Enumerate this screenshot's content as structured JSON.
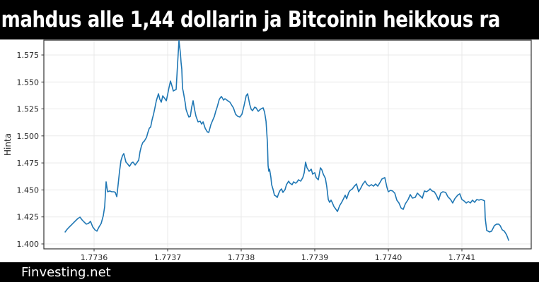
{
  "header": {
    "title": "mahdus alle 1,44 dollarin ja Bitcoinin heikkous ra",
    "background": "#000000",
    "text_color": "#ffffff"
  },
  "footer": {
    "site": "Finvesting.net",
    "background": "#000000",
    "text_color": "#ffffff"
  },
  "chart_data": {
    "type": "line",
    "title": "",
    "xlabel": "",
    "ylabel": "Hinta",
    "legend": false,
    "grid": true,
    "x_tick_labels": [
      "1.7736",
      "1.7737",
      "1.7738",
      "1.7739",
      "1.7740",
      "1.7741"
    ],
    "x_tick_values": [
      1.7736,
      1.7737,
      1.7738,
      1.7739,
      1.774,
      1.7741
    ],
    "y_tick_labels": [
      "1.400",
      "1.425",
      "1.450",
      "1.475",
      "1.500",
      "1.525",
      "1.550",
      "1.575"
    ],
    "y_tick_values": [
      1.4,
      1.425,
      1.45,
      1.475,
      1.5,
      1.525,
      1.55,
      1.575
    ],
    "xlim": [
      1.7735317,
      1.7741942
    ],
    "ylim": [
      1.3954,
      1.5887
    ],
    "line_color": "#1f77b4",
    "grid_color": "#e9e9e9",
    "spine_color": "#333333",
    "tick_label_color": "#262626",
    "series": [
      {
        "name": "Hinta",
        "points": [
          [
            1.7735606,
            1.4111
          ],
          [
            1.7735635,
            1.4137
          ],
          [
            1.7735663,
            1.4157
          ],
          [
            1.7735692,
            1.4176
          ],
          [
            1.7735721,
            1.4196
          ],
          [
            1.773575,
            1.4216
          ],
          [
            1.7735779,
            1.4235
          ],
          [
            1.7735808,
            1.4248
          ],
          [
            1.7735837,
            1.4222
          ],
          [
            1.7735865,
            1.4202
          ],
          [
            1.7735894,
            1.4183
          ],
          [
            1.7735923,
            1.4189
          ],
          [
            1.7735952,
            1.4209
          ],
          [
            1.7735981,
            1.4157
          ],
          [
            1.773601,
            1.4131
          ],
          [
            1.7736038,
            1.4118
          ],
          [
            1.7736067,
            1.4157
          ],
          [
            1.7736096,
            1.4189
          ],
          [
            1.7736125,
            1.4261
          ],
          [
            1.7736144,
            1.4346
          ],
          [
            1.7736163,
            1.4575
          ],
          [
            1.7736183,
            1.4483
          ],
          [
            1.7736212,
            1.449
          ],
          [
            1.773624,
            1.4483
          ],
          [
            1.7736269,
            1.4483
          ],
          [
            1.7736288,
            1.4477
          ],
          [
            1.7736308,
            1.4437
          ],
          [
            1.7736327,
            1.4549
          ],
          [
            1.7736346,
            1.4673
          ],
          [
            1.7736365,
            1.4771
          ],
          [
            1.7736385,
            1.4816
          ],
          [
            1.7736404,
            1.4836
          ],
          [
            1.7736433,
            1.4757
          ],
          [
            1.7736452,
            1.4744
          ],
          [
            1.7736481,
            1.4718
          ],
          [
            1.773651,
            1.4751
          ],
          [
            1.7736529,
            1.4757
          ],
          [
            1.7736558,
            1.4731
          ],
          [
            1.7736587,
            1.4757
          ],
          [
            1.7736606,
            1.4777
          ],
          [
            1.7736625,
            1.4855
          ],
          [
            1.7736644,
            1.4908
          ],
          [
            1.7736663,
            1.494
          ],
          [
            1.7736683,
            1.4953
          ],
          [
            1.7736712,
            1.4986
          ],
          [
            1.7736731,
            1.5032
          ],
          [
            1.773675,
            1.5071
          ],
          [
            1.7736769,
            1.5084
          ],
          [
            1.7736788,
            1.5149
          ],
          [
            1.7736808,
            1.5202
          ],
          [
            1.7736827,
            1.526
          ],
          [
            1.7736846,
            1.5326
          ],
          [
            1.7736875,
            1.5391
          ],
          [
            1.7736894,
            1.5339
          ],
          [
            1.7736913,
            1.5313
          ],
          [
            1.7736933,
            1.5371
          ],
          [
            1.7736962,
            1.5345
          ],
          [
            1.7736981,
            1.5326
          ],
          [
            1.7737,
            1.5384
          ],
          [
            1.7737019,
            1.545
          ],
          [
            1.7737038,
            1.5508
          ],
          [
            1.7737058,
            1.5463
          ],
          [
            1.7737077,
            1.5417
          ],
          [
            1.7737096,
            1.5424
          ],
          [
            1.7737115,
            1.543
          ],
          [
            1.7737135,
            1.5672
          ],
          [
            1.7737154,
            1.5885
          ],
          [
            1.7737173,
            1.5769
          ],
          [
            1.7737183,
            1.5672
          ],
          [
            1.7737192,
            1.5619
          ],
          [
            1.7737202,
            1.5443
          ],
          [
            1.7737212,
            1.541
          ],
          [
            1.773724,
            1.53
          ],
          [
            1.773725,
            1.5247
          ],
          [
            1.7737269,
            1.5208
          ],
          [
            1.7737288,
            1.5175
          ],
          [
            1.7737308,
            1.5182
          ],
          [
            1.7737327,
            1.5267
          ],
          [
            1.7737346,
            1.5326
          ],
          [
            1.7737365,
            1.5247
          ],
          [
            1.7737385,
            1.5182
          ],
          [
            1.7737413,
            1.513
          ],
          [
            1.7737442,
            1.5136
          ],
          [
            1.7737462,
            1.511
          ],
          [
            1.7737481,
            1.513
          ],
          [
            1.773751,
            1.5071
          ],
          [
            1.7737538,
            1.5038
          ],
          [
            1.7737558,
            1.5032
          ],
          [
            1.7737587,
            1.5104
          ],
          [
            1.7737606,
            1.5136
          ],
          [
            1.7737635,
            1.5182
          ],
          [
            1.7737654,
            1.5228
          ],
          [
            1.7737673,
            1.5267
          ],
          [
            1.7737702,
            1.5339
          ],
          [
            1.7737721,
            1.5358
          ],
          [
            1.7737731,
            1.5365
          ],
          [
            1.773776,
            1.5332
          ],
          [
            1.7737779,
            1.5345
          ],
          [
            1.7737817,
            1.5326
          ],
          [
            1.7737846,
            1.5313
          ],
          [
            1.7737875,
            1.528
          ],
          [
            1.7737894,
            1.526
          ],
          [
            1.7737923,
            1.5202
          ],
          [
            1.7737952,
            1.5182
          ],
          [
            1.7737981,
            1.5175
          ],
          [
            1.773801,
            1.5202
          ],
          [
            1.7738038,
            1.528
          ],
          [
            1.7738067,
            1.5371
          ],
          [
            1.7738087,
            1.5391
          ],
          [
            1.7738115,
            1.5293
          ],
          [
            1.7738135,
            1.5247
          ],
          [
            1.7738154,
            1.5234
          ],
          [
            1.7738183,
            1.5267
          ],
          [
            1.7738202,
            1.526
          ],
          [
            1.7738231,
            1.5228
          ],
          [
            1.773826,
            1.5247
          ],
          [
            1.7738279,
            1.5254
          ],
          [
            1.7738298,
            1.526
          ],
          [
            1.7738317,
            1.5221
          ],
          [
            1.7738337,
            1.5136
          ],
          [
            1.7738356,
            1.4934
          ],
          [
            1.7738365,
            1.4725
          ],
          [
            1.7738375,
            1.4673
          ],
          [
            1.7738385,
            1.4692
          ],
          [
            1.7738404,
            1.4614
          ],
          [
            1.7738413,
            1.4549
          ],
          [
            1.7738433,
            1.4503
          ],
          [
            1.7738452,
            1.4451
          ],
          [
            1.7738471,
            1.4444
          ],
          [
            1.773849,
            1.4431
          ],
          [
            1.773851,
            1.447
          ],
          [
            1.7738529,
            1.4496
          ],
          [
            1.7738548,
            1.4509
          ],
          [
            1.7738567,
            1.4477
          ],
          [
            1.7738596,
            1.4503
          ],
          [
            1.7738615,
            1.4549
          ],
          [
            1.7738644,
            1.4581
          ],
          [
            1.7738663,
            1.4562
          ],
          [
            1.7738692,
            1.4549
          ],
          [
            1.7738712,
            1.4575
          ],
          [
            1.773874,
            1.4562
          ],
          [
            1.773876,
            1.4575
          ],
          [
            1.7738779,
            1.4594
          ],
          [
            1.7738808,
            1.4581
          ],
          [
            1.7738837,
            1.4614
          ],
          [
            1.7738856,
            1.466
          ],
          [
            1.7738875,
            1.4757
          ],
          [
            1.7738894,
            1.4705
          ],
          [
            1.7738923,
            1.4673
          ],
          [
            1.7738952,
            1.4692
          ],
          [
            1.7738971,
            1.4646
          ],
          [
            1.7739,
            1.466
          ],
          [
            1.7739019,
            1.4614
          ],
          [
            1.7739048,
            1.4594
          ],
          [
            1.7739077,
            1.4705
          ],
          [
            1.7739096,
            1.4686
          ],
          [
            1.7739115,
            1.4646
          ],
          [
            1.7739144,
            1.4607
          ],
          [
            1.7739163,
            1.4529
          ],
          [
            1.7739183,
            1.4411
          ],
          [
            1.7739202,
            1.4385
          ],
          [
            1.7739221,
            1.4405
          ],
          [
            1.773924,
            1.4379
          ],
          [
            1.773926,
            1.4346
          ],
          [
            1.7739288,
            1.432
          ],
          [
            1.7739308,
            1.43
          ],
          [
            1.7739337,
            1.4353
          ],
          [
            1.7739365,
            1.4385
          ],
          [
            1.7739385,
            1.4411
          ],
          [
            1.7739413,
            1.4451
          ],
          [
            1.7739433,
            1.4418
          ],
          [
            1.7739462,
            1.4477
          ],
          [
            1.7739481,
            1.4496
          ],
          [
            1.773951,
            1.4509
          ],
          [
            1.7739538,
            1.4535
          ],
          [
            1.7739567,
            1.4555
          ],
          [
            1.7739596,
            1.4483
          ],
          [
            1.7739625,
            1.4516
          ],
          [
            1.7739654,
            1.4555
          ],
          [
            1.7739683,
            1.4581
          ],
          [
            1.7739712,
            1.4549
          ],
          [
            1.773974,
            1.4535
          ],
          [
            1.7739769,
            1.4549
          ],
          [
            1.7739798,
            1.4535
          ],
          [
            1.7739827,
            1.4555
          ],
          [
            1.7739856,
            1.4535
          ],
          [
            1.7739885,
            1.4568
          ],
          [
            1.7739913,
            1.4601
          ],
          [
            1.7739952,
            1.4614
          ],
          [
            1.7739981,
            1.4522
          ],
          [
            1.774,
            1.4483
          ],
          [
            1.7740029,
            1.4496
          ],
          [
            1.7740058,
            1.449
          ],
          [
            1.7740087,
            1.447
          ],
          [
            1.7740115,
            1.4405
          ],
          [
            1.7740144,
            1.4379
          ],
          [
            1.7740173,
            1.4333
          ],
          [
            1.7740202,
            1.432
          ],
          [
            1.7740231,
            1.4372
          ],
          [
            1.7740269,
            1.4411
          ],
          [
            1.7740298,
            1.4457
          ],
          [
            1.7740327,
            1.4424
          ],
          [
            1.7740365,
            1.4431
          ],
          [
            1.7740394,
            1.447
          ],
          [
            1.7740423,
            1.4451
          ],
          [
            1.7740462,
            1.4424
          ],
          [
            1.774049,
            1.449
          ],
          [
            1.7740519,
            1.4483
          ],
          [
            1.7740548,
            1.4496
          ],
          [
            1.7740567,
            1.4509
          ],
          [
            1.7740596,
            1.449
          ],
          [
            1.7740625,
            1.4483
          ],
          [
            1.7740654,
            1.4451
          ],
          [
            1.7740683,
            1.4405
          ],
          [
            1.7740712,
            1.447
          ],
          [
            1.774074,
            1.4483
          ],
          [
            1.7740779,
            1.4477
          ],
          [
            1.7740808,
            1.4438
          ],
          [
            1.7740846,
            1.4411
          ],
          [
            1.7740875,
            1.4379
          ],
          [
            1.7740904,
            1.4418
          ],
          [
            1.7740942,
            1.4451
          ],
          [
            1.7740971,
            1.4464
          ],
          [
            1.7741,
            1.4411
          ],
          [
            1.7741029,
            1.4398
          ],
          [
            1.7741058,
            1.4379
          ],
          [
            1.7741087,
            1.4392
          ],
          [
            1.7741115,
            1.4379
          ],
          [
            1.7741144,
            1.4405
          ],
          [
            1.7741173,
            1.4385
          ],
          [
            1.7741202,
            1.4411
          ],
          [
            1.7741231,
            1.4405
          ],
          [
            1.774126,
            1.4411
          ],
          [
            1.7741288,
            1.4405
          ],
          [
            1.7741308,
            1.4398
          ],
          [
            1.7741317,
            1.4235
          ],
          [
            1.7741337,
            1.4124
          ],
          [
            1.7741356,
            1.4118
          ],
          [
            1.7741375,
            1.4111
          ],
          [
            1.7741404,
            1.4118
          ],
          [
            1.7741423,
            1.4144
          ],
          [
            1.7741442,
            1.417
          ],
          [
            1.7741471,
            1.4183
          ],
          [
            1.77415,
            1.4183
          ],
          [
            1.7741519,
            1.417
          ],
          [
            1.7741548,
            1.4131
          ],
          [
            1.7741577,
            1.4118
          ],
          [
            1.7741606,
            1.4085
          ],
          [
            1.7741635,
            1.4033
          ]
        ]
      }
    ]
  }
}
